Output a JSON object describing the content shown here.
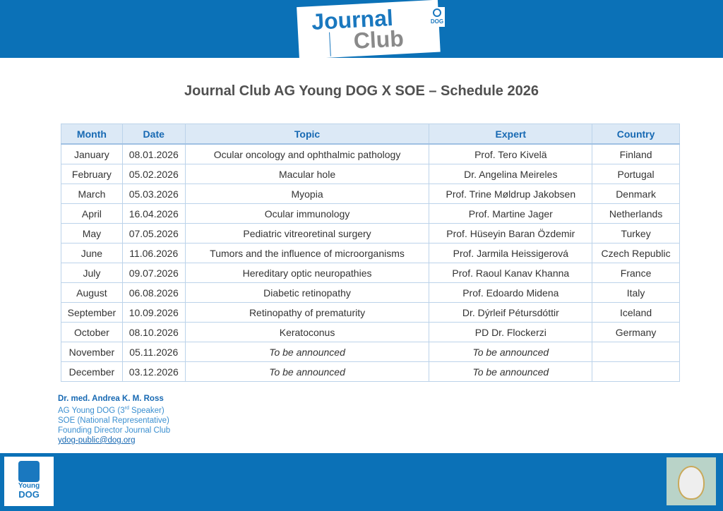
{
  "header": {
    "logo_line1": "Journal",
    "logo_line2": "Club",
    "badge": "DOG"
  },
  "title": "Journal Club AG Young DOG X SOE – Schedule 2026",
  "table": {
    "columns": [
      "Month",
      "Date",
      "Topic",
      "Expert",
      "Country"
    ],
    "rows": [
      [
        "January",
        "08.01.2026",
        "Ocular oncology and ophthalmic pathology",
        "Prof. Tero Kivelä",
        "Finland"
      ],
      [
        "February",
        "05.02.2026",
        "Macular hole",
        "Dr. Angelina Meireles",
        "Portugal"
      ],
      [
        "March",
        "05.03.2026",
        "Myopia",
        "Prof. Trine Møldrup Jakobsen",
        "Denmark"
      ],
      [
        "April",
        "16.04.2026",
        "Ocular immunology",
        "Prof. Martine Jager",
        "Netherlands"
      ],
      [
        "May",
        "07.05.2026",
        "Pediatric vitreoretinal surgery",
        "Prof. Hüseyin Baran Özdemir",
        "Turkey"
      ],
      [
        "June",
        "11.06.2026",
        "Tumors and the influence of microorganisms",
        "Prof. Jarmila Heissigerová",
        "Czech Republic"
      ],
      [
        "July",
        "09.07.2026",
        "Hereditary optic neuropathies",
        "Prof. Raoul Kanav Khanna",
        "France"
      ],
      [
        "August",
        "06.08.2026",
        "Diabetic retinopathy",
        "Prof. Edoardo Midena",
        "Italy"
      ],
      [
        "September",
        "10.09.2026",
        "Retinopathy of prematurity",
        "Dr. Dýrleif Pétursdóttir",
        "Iceland"
      ],
      [
        "October",
        "08.10.2026",
        "Keratoconus",
        "PD Dr. Flockerzi",
        "Germany"
      ],
      [
        "November",
        "05.11.2026",
        "To be announced",
        "To be announced",
        ""
      ],
      [
        "December",
        "03.12.2026",
        "To be announced",
        "To be announced",
        ""
      ]
    ]
  },
  "contact": {
    "name": "Dr. med. Andrea K. M. Ross",
    "role1": [
      "AG Young DOG (3",
      "rd",
      " Speaker)"
    ],
    "role2": "SOE (National Representative)",
    "role3": "Founding Director Journal Club",
    "email": "ydog-public@dog.org"
  },
  "footer": {
    "logo_line1": "Young",
    "logo_line2": "DOG"
  }
}
